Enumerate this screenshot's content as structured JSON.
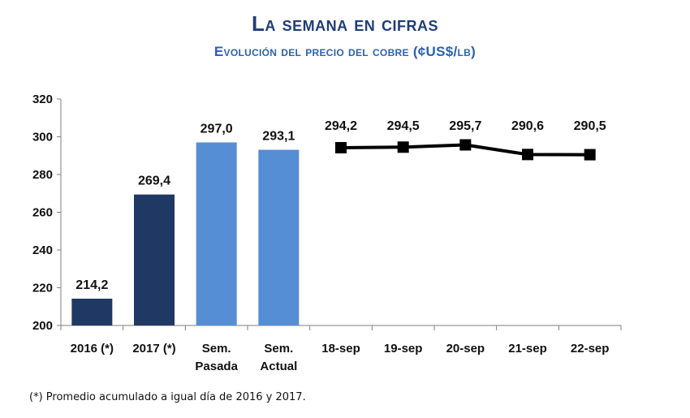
{
  "header": {
    "title": "La semana en cifras",
    "subtitle": "Evolución del precio del cobre  (¢US$/lb)"
  },
  "footnote": "(*) Promedio acumulado a igual día de 2016 y 2017.",
  "colors": {
    "annual_bar": "#1f3864",
    "weekly_bar": "#558ed5",
    "line": "#000000",
    "axis": "#7f7f7f"
  },
  "chart_data": {
    "type": "bar",
    "categories": [
      "2016 (*)",
      "2017 (*)",
      "Sem. Pasada",
      "Sem. Actual",
      "18-sep",
      "19-sep",
      "20-sep",
      "21-sep",
      "22-sep"
    ],
    "category_lines": [
      [
        "2016 (*)"
      ],
      [
        "2017 (*)"
      ],
      [
        "Sem.",
        "Pasada"
      ],
      [
        "Sem.",
        "Actual"
      ],
      [
        "18-sep"
      ],
      [
        "19-sep"
      ],
      [
        "20-sep"
      ],
      [
        "21-sep"
      ],
      [
        "22-sep"
      ]
    ],
    "bars": [
      {
        "category": "2016 (*)",
        "value": 214.2,
        "label": "214,2",
        "color_key": "annual_bar"
      },
      {
        "category": "2017 (*)",
        "value": 269.4,
        "label": "269,4",
        "color_key": "annual_bar"
      },
      {
        "category": "Sem. Pasada",
        "value": 297.0,
        "label": "297,0",
        "color_key": "weekly_bar"
      },
      {
        "category": "Sem. Actual",
        "value": 293.1,
        "label": "293,1",
        "color_key": "weekly_bar"
      }
    ],
    "line": [
      {
        "category": "18-sep",
        "value": 294.2,
        "label": "294,2"
      },
      {
        "category": "19-sep",
        "value": 294.5,
        "label": "294,5"
      },
      {
        "category": "20-sep",
        "value": 295.7,
        "label": "295,7"
      },
      {
        "category": "21-sep",
        "value": 290.6,
        "label": "290,6"
      },
      {
        "category": "22-sep",
        "value": 290.5,
        "label": "290,5"
      }
    ],
    "ylim": [
      200,
      320
    ],
    "yticks": [
      200,
      220,
      240,
      260,
      280,
      300,
      320
    ],
    "grid": false,
    "legend": "none"
  }
}
